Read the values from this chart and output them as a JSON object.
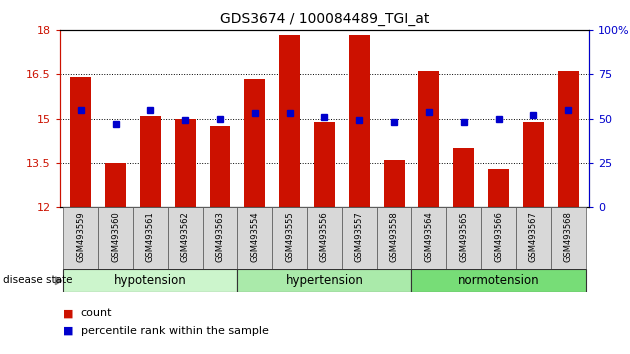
{
  "title": "GDS3674 / 100084489_TGI_at",
  "samples": [
    "GSM493559",
    "GSM493560",
    "GSM493561",
    "GSM493562",
    "GSM493563",
    "GSM493554",
    "GSM493555",
    "GSM493556",
    "GSM493557",
    "GSM493558",
    "GSM493564",
    "GSM493565",
    "GSM493566",
    "GSM493567",
    "GSM493568"
  ],
  "counts": [
    16.4,
    13.5,
    15.1,
    15.0,
    14.75,
    16.35,
    17.85,
    14.9,
    17.85,
    13.6,
    16.6,
    14.0,
    13.3,
    14.9,
    16.6
  ],
  "percentiles": [
    55,
    47,
    55,
    49,
    50,
    53,
    53,
    51,
    49,
    48,
    54,
    48,
    50,
    52,
    55
  ],
  "groups": [
    {
      "label": "hypotension",
      "start": 0,
      "end": 4,
      "color": "#ccf5cc"
    },
    {
      "label": "hypertension",
      "start": 5,
      "end": 9,
      "color": "#aaeaaa"
    },
    {
      "label": "normotension",
      "start": 10,
      "end": 14,
      "color": "#77dd77"
    }
  ],
  "ylim_left": [
    12,
    18
  ],
  "ylim_right": [
    0,
    100
  ],
  "yticks_left": [
    12,
    13.5,
    15,
    16.5,
    18
  ],
  "yticks_right": [
    0,
    25,
    50,
    75,
    100
  ],
  "bar_color": "#cc1100",
  "dot_color": "#0000cc",
  "bar_bottom": 12,
  "label_count": "count",
  "label_percentile": "percentile rank within the sample"
}
